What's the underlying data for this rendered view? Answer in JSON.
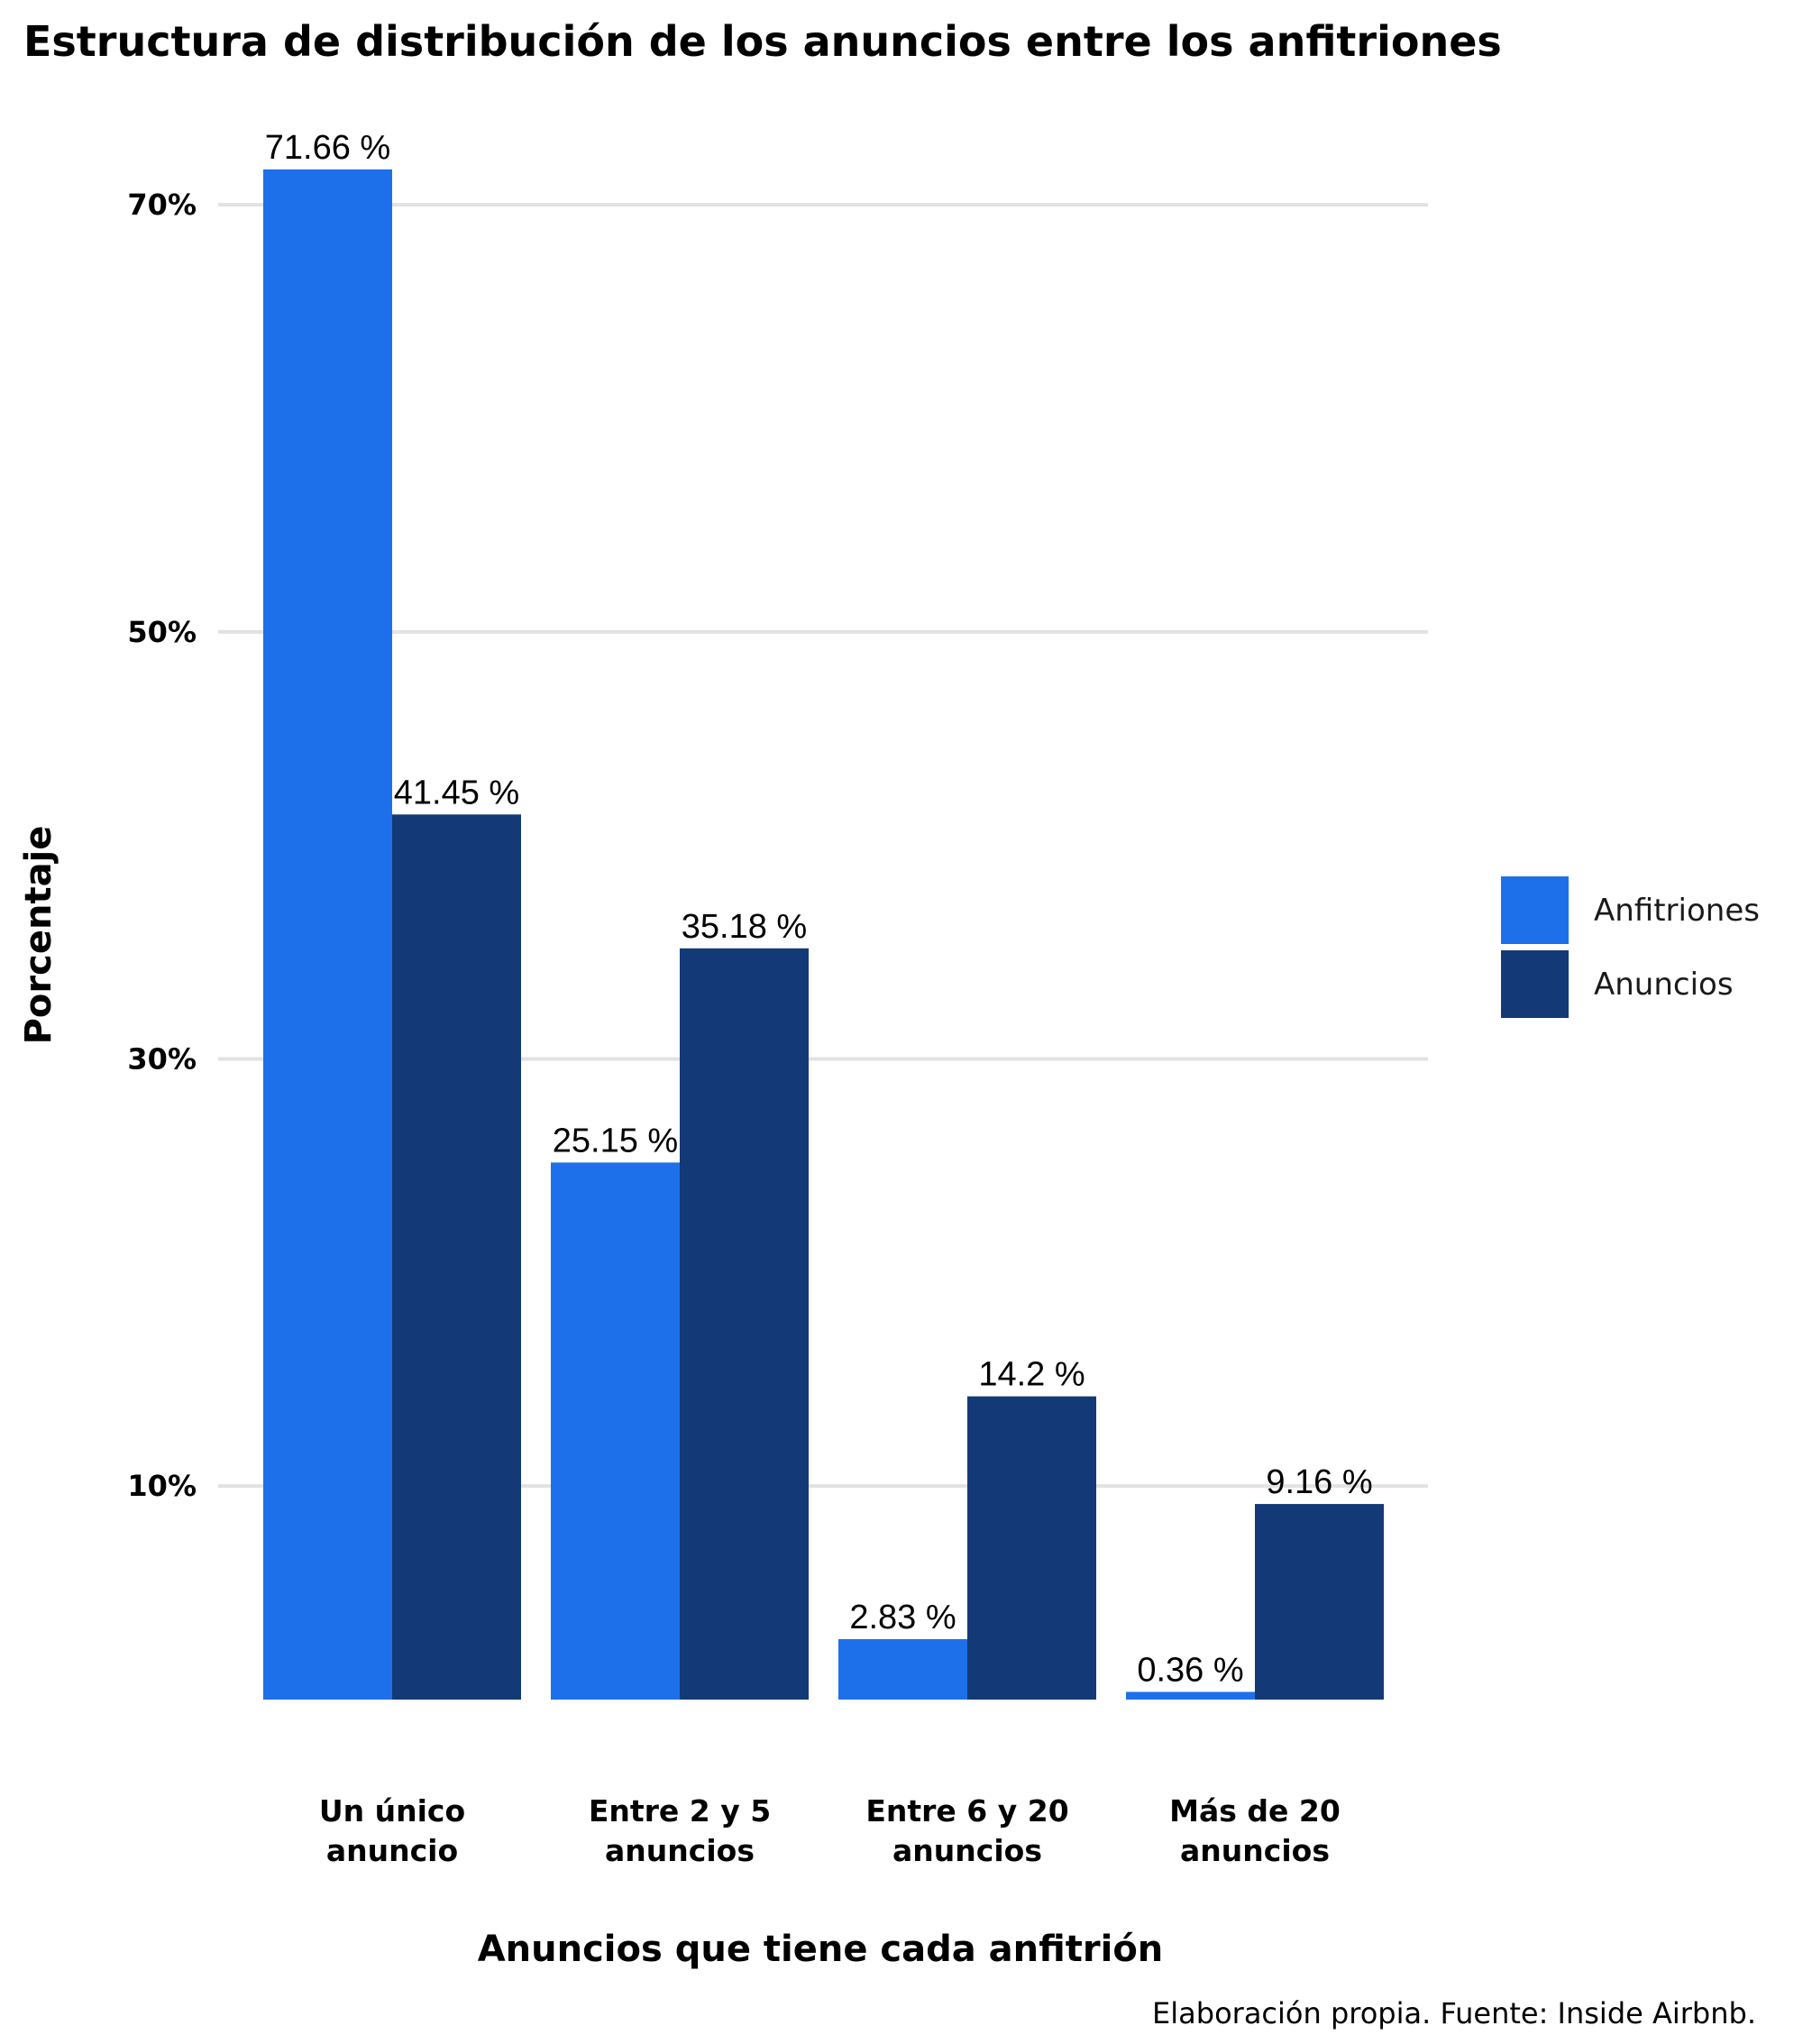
{
  "chart_data": {
    "type": "bar",
    "title": "Estructura de distribución de los anuncios entre los anfitriones",
    "xlabel": "Anuncios que tiene cada anfitrión",
    "ylabel": "Porcentaje",
    "caption": "Elaboración propia. Fuente: Inside Airbnb.",
    "categories": [
      [
        "Un único",
        "anuncio"
      ],
      [
        "Entre 2 y 5",
        "anuncios"
      ],
      [
        "Entre 6 y 20",
        "anuncios"
      ],
      [
        "Más de 20",
        "anuncios"
      ]
    ],
    "series": [
      {
        "name": "Anfitriones",
        "color": "#1E70EA",
        "values": [
          71.66,
          25.15,
          2.83,
          0.36
        ],
        "labels": [
          "71.66 %",
          "25.15 %",
          "2.83 %",
          "0.36 %"
        ]
      },
      {
        "name": "Anuncios",
        "color": "#133A76",
        "values": [
          41.45,
          35.18,
          14.2,
          9.16
        ],
        "labels": [
          "41.45 %",
          "35.18 %",
          "14.2 %",
          "9.16 %"
        ]
      }
    ],
    "yticks": [
      {
        "value": 10,
        "label": "10%"
      },
      {
        "value": 30,
        "label": "30%"
      },
      {
        "value": 50,
        "label": "50%"
      },
      {
        "value": 70,
        "label": "70%"
      }
    ],
    "ylim": [
      0,
      73
    ],
    "grid": true,
    "legend_position": "right"
  }
}
